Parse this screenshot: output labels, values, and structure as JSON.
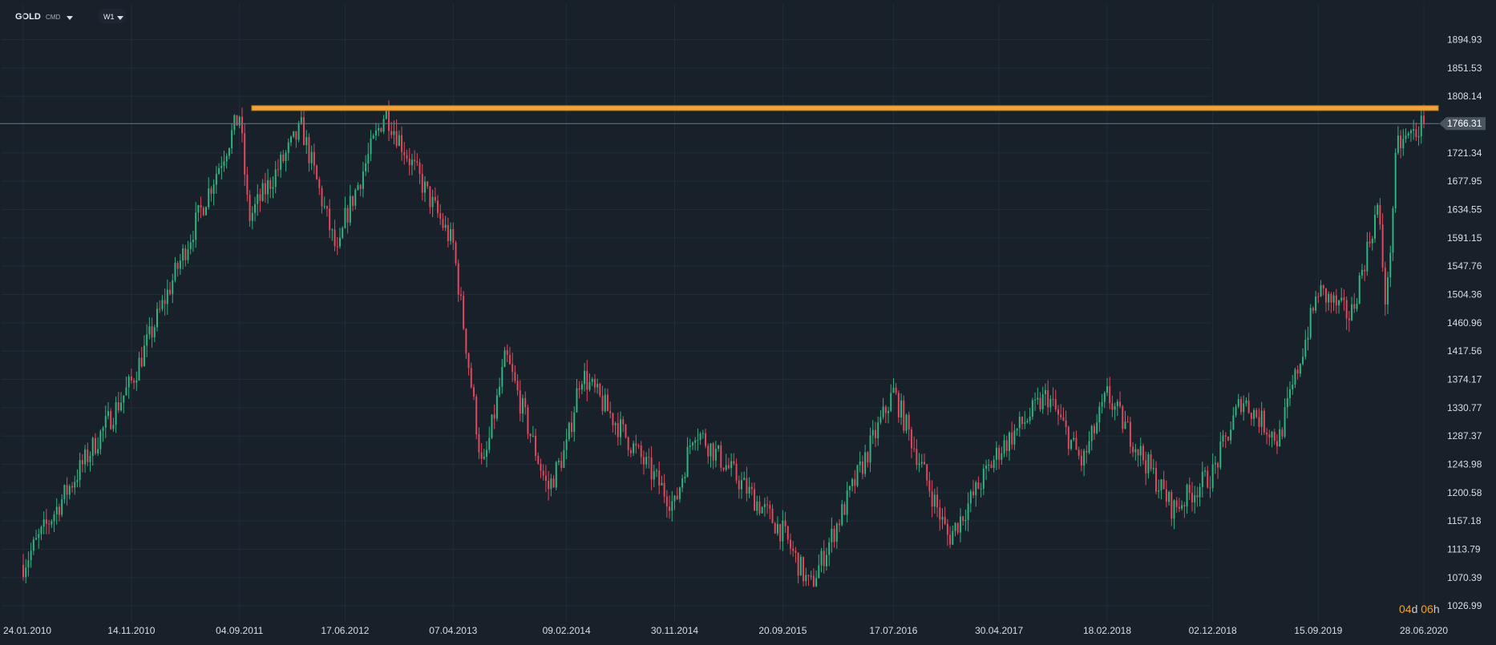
{
  "toolbar": {
    "symbol": "GOLD",
    "symbol_type": "CMD",
    "timeframe": "W1"
  },
  "countdown": {
    "days": "04",
    "days_unit": "d",
    "hours": "06",
    "hours_unit": "h"
  },
  "colors": {
    "background": "#18202a",
    "grid": "#222c37",
    "up": "#2fb37f",
    "down": "#e0495d",
    "resistance": "#f0a33a",
    "price_line": "#6d7983",
    "price_label_bg": "#4a5560",
    "axis_text": "#d9dee3"
  },
  "chart_data": {
    "type": "candlestick",
    "timeframe": "W1",
    "x_ticks": [
      "24.01.2010",
      "14.11.2010",
      "04.09.2011",
      "17.06.2012",
      "07.04.2013",
      "09.02.2014",
      "30.11.2014",
      "20.09.2015",
      "17.07.2016",
      "30.04.2017",
      "18.02.2018",
      "02.12.2018",
      "15.09.2019",
      "28.06.2020"
    ],
    "y_ticks": [
      1894.93,
      1851.53,
      1808.14,
      1721.34,
      1677.95,
      1634.55,
      1591.15,
      1547.76,
      1504.36,
      1460.96,
      1417.56,
      1374.17,
      1330.77,
      1287.37,
      1243.98,
      1200.58,
      1157.18,
      1113.79,
      1070.39,
      1026.99
    ],
    "ylim": [
      1010,
      1925
    ],
    "current_price": 1766.31,
    "resistance_level": 1790,
    "weekly_close_anchors": [
      [
        "24.01.2010",
        1090
      ],
      [
        "14.11.2010",
        1370
      ],
      [
        "04.09.2011",
        1780
      ],
      [
        "29.09.2011",
        1620
      ],
      [
        "20.02.2012",
        1760
      ],
      [
        "29.05.2012",
        1560
      ],
      [
        "17.06.2012",
        1620
      ],
      [
        "04.10.2012",
        1785
      ],
      [
        "07.04.2013",
        1580
      ],
      [
        "26.06.2013",
        1230
      ],
      [
        "28.08.2013",
        1410
      ],
      [
        "20.12.2013",
        1205
      ],
      [
        "09.02.2014",
        1270
      ],
      [
        "20.03.2014",
        1385
      ],
      [
        "30.11.2014",
        1180
      ],
      [
        "22.01.2015",
        1300
      ],
      [
        "20.09.2015",
        1140
      ],
      [
        "03.12.2015",
        1055
      ],
      [
        "17.07.2016",
        1355
      ],
      [
        "14.12.2016",
        1130
      ],
      [
        "30.04.2017",
        1265
      ],
      [
        "08.09.2017",
        1350
      ],
      [
        "12.12.2017",
        1245
      ],
      [
        "18.02.2018",
        1350
      ],
      [
        "16.08.2018",
        1175
      ],
      [
        "02.12.2018",
        1230
      ],
      [
        "19.02.2019",
        1345
      ],
      [
        "30.05.2019",
        1280
      ],
      [
        "15.09.2019",
        1510
      ],
      [
        "12.12.2019",
        1470
      ],
      [
        "24.02.2020",
        1640
      ],
      [
        "18.03.2020",
        1480
      ],
      [
        "15.04.2020",
        1730
      ],
      [
        "28.06.2020",
        1766
      ]
    ]
  }
}
